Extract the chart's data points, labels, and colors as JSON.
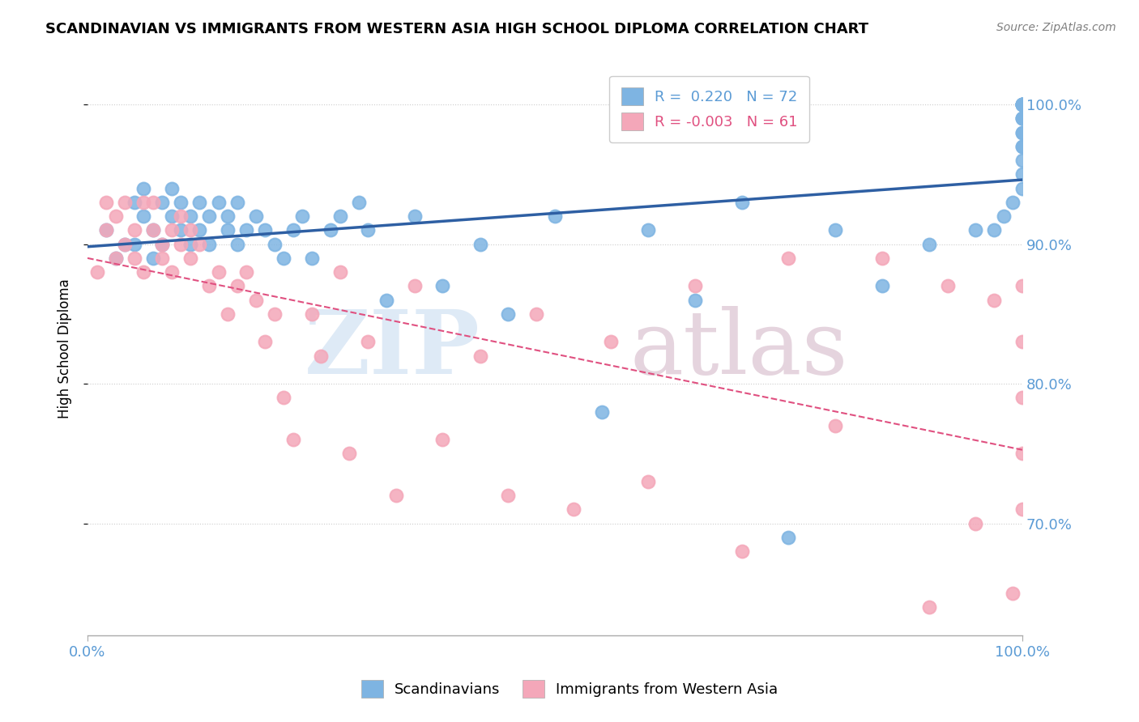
{
  "title": "SCANDINAVIAN VS IMMIGRANTS FROM WESTERN ASIA HIGH SCHOOL DIPLOMA CORRELATION CHART",
  "source": "Source: ZipAtlas.com",
  "ylabel": "High School Diploma",
  "xlim": [
    0.0,
    1.0
  ],
  "ylim": [
    0.62,
    1.03
  ],
  "y_tick_values": [
    0.7,
    0.8,
    0.9,
    1.0
  ],
  "y_tick_labels": [
    "70.0%",
    "80.0%",
    "90.0%",
    "100.0%"
  ],
  "blue_color": "#7EB4E2",
  "pink_color": "#F4A7B9",
  "line_blue": "#2E5FA3",
  "line_pink": "#E05080",
  "tick_color": "#5B9BD5",
  "scandinavians": {
    "x": [
      0.02,
      0.03,
      0.04,
      0.05,
      0.05,
      0.06,
      0.06,
      0.07,
      0.07,
      0.08,
      0.08,
      0.09,
      0.09,
      0.1,
      0.1,
      0.11,
      0.11,
      0.12,
      0.12,
      0.13,
      0.13,
      0.14,
      0.15,
      0.15,
      0.16,
      0.16,
      0.17,
      0.18,
      0.19,
      0.2,
      0.21,
      0.22,
      0.23,
      0.24,
      0.26,
      0.27,
      0.29,
      0.3,
      0.32,
      0.35,
      0.38,
      0.42,
      0.45,
      0.5,
      0.55,
      0.6,
      0.65,
      0.7,
      0.75,
      0.8,
      0.85,
      0.9,
      0.95,
      0.97,
      0.98,
      0.99,
      1.0,
      1.0,
      1.0,
      1.0,
      1.0,
      1.0,
      1.0,
      1.0,
      1.0,
      1.0,
      1.0,
      1.0,
      1.0,
      1.0,
      1.0,
      1.0
    ],
    "y": [
      0.91,
      0.89,
      0.9,
      0.93,
      0.9,
      0.92,
      0.94,
      0.91,
      0.89,
      0.93,
      0.9,
      0.94,
      0.92,
      0.91,
      0.93,
      0.9,
      0.92,
      0.93,
      0.91,
      0.92,
      0.9,
      0.93,
      0.91,
      0.92,
      0.9,
      0.93,
      0.91,
      0.92,
      0.91,
      0.9,
      0.89,
      0.91,
      0.92,
      0.89,
      0.91,
      0.92,
      0.93,
      0.91,
      0.86,
      0.92,
      0.87,
      0.9,
      0.85,
      0.92,
      0.78,
      0.91,
      0.86,
      0.93,
      0.69,
      0.91,
      0.87,
      0.9,
      0.91,
      0.91,
      0.92,
      0.93,
      0.94,
      0.95,
      0.96,
      0.97,
      0.97,
      0.98,
      0.98,
      0.99,
      0.99,
      0.99,
      1.0,
      1.0,
      1.0,
      1.0,
      1.0,
      1.0
    ]
  },
  "immigrants": {
    "x": [
      0.01,
      0.02,
      0.02,
      0.03,
      0.03,
      0.04,
      0.04,
      0.05,
      0.05,
      0.06,
      0.06,
      0.07,
      0.07,
      0.08,
      0.08,
      0.09,
      0.09,
      0.1,
      0.1,
      0.11,
      0.11,
      0.12,
      0.13,
      0.14,
      0.15,
      0.16,
      0.17,
      0.18,
      0.19,
      0.2,
      0.21,
      0.22,
      0.24,
      0.25,
      0.27,
      0.28,
      0.3,
      0.33,
      0.35,
      0.38,
      0.42,
      0.45,
      0.48,
      0.52,
      0.56,
      0.6,
      0.65,
      0.7,
      0.75,
      0.8,
      0.85,
      0.9,
      0.92,
      0.95,
      0.97,
      0.99,
      1.0,
      1.0,
      1.0,
      1.0,
      1.0
    ],
    "y": [
      0.88,
      0.91,
      0.93,
      0.89,
      0.92,
      0.9,
      0.93,
      0.91,
      0.89,
      0.93,
      0.88,
      0.91,
      0.93,
      0.9,
      0.89,
      0.91,
      0.88,
      0.9,
      0.92,
      0.89,
      0.91,
      0.9,
      0.87,
      0.88,
      0.85,
      0.87,
      0.88,
      0.86,
      0.83,
      0.85,
      0.79,
      0.76,
      0.85,
      0.82,
      0.88,
      0.75,
      0.83,
      0.72,
      0.87,
      0.76,
      0.82,
      0.72,
      0.85,
      0.71,
      0.83,
      0.73,
      0.87,
      0.68,
      0.89,
      0.77,
      0.89,
      0.64,
      0.87,
      0.7,
      0.86,
      0.65,
      0.87,
      0.83,
      0.79,
      0.75,
      0.71
    ]
  }
}
